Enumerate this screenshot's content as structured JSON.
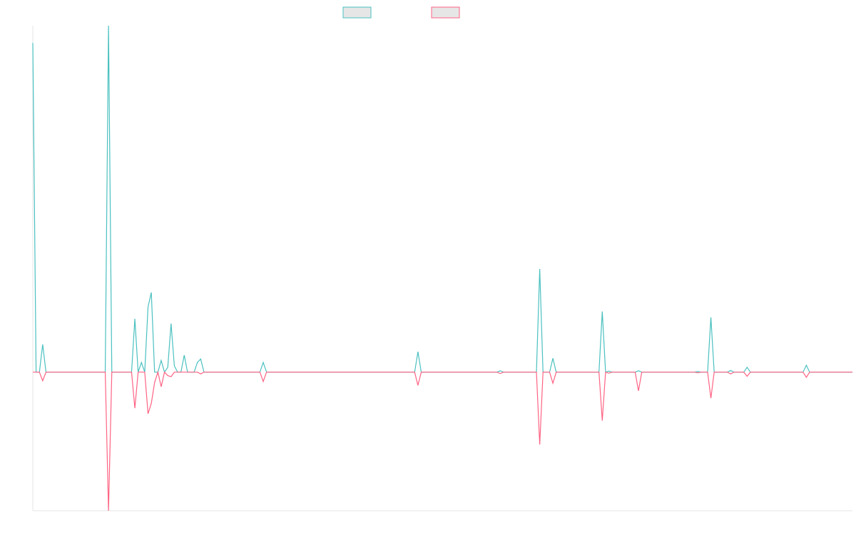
{
  "chart_data": {
    "type": "line",
    "series": [
      {
        "color": "#4bc0c0",
        "values": [
          95,
          0,
          0,
          8,
          0,
          0,
          0,
          0,
          0,
          0,
          0,
          0,
          0,
          0,
          0,
          0,
          0,
          0,
          0,
          0,
          0,
          0,
          0,
          100,
          0,
          0,
          0,
          0,
          0,
          0,
          0,
          15.4,
          0,
          2.8,
          0,
          18.8,
          23,
          0,
          0,
          3.4,
          0,
          1.4,
          14,
          1.8,
          0,
          0,
          4.9,
          0,
          0,
          0,
          2.8,
          3.8,
          0,
          0,
          0,
          0,
          0,
          0,
          0,
          0,
          0,
          0,
          0,
          0,
          0,
          0,
          0,
          0,
          0,
          0,
          2.8,
          0,
          0,
          0,
          0,
          0,
          0,
          0,
          0,
          0,
          0,
          0,
          0,
          0,
          0,
          0,
          0,
          0,
          0,
          0,
          0,
          0,
          0,
          0,
          0,
          0,
          0,
          0,
          0,
          0,
          0,
          0,
          0,
          0,
          0,
          0,
          0,
          0,
          0,
          0,
          0,
          0,
          0,
          0,
          0,
          0,
          0,
          5.9,
          0,
          0,
          0,
          0,
          0,
          0,
          0,
          0,
          0,
          0,
          0,
          0,
          0,
          0,
          0,
          0,
          0,
          0,
          0,
          0,
          0,
          0,
          0,
          0,
          0.4,
          0,
          0,
          0,
          0,
          0,
          0,
          0,
          0,
          0,
          0,
          0,
          29.8,
          0,
          0,
          0,
          4,
          0,
          0,
          0,
          0,
          0,
          0,
          0,
          0,
          0,
          0,
          0,
          0,
          0,
          0,
          17.5,
          0,
          0.3,
          0,
          0,
          0,
          0,
          0,
          0,
          0,
          0,
          0.4,
          0,
          0,
          0,
          0,
          0,
          0,
          0,
          0,
          0,
          0,
          0,
          0,
          0,
          0,
          0,
          0,
          0,
          0.2,
          0,
          0,
          0,
          15.8,
          0,
          0,
          0,
          0,
          0,
          0.5,
          0,
          0,
          0,
          0,
          1.4,
          0,
          0,
          0,
          0,
          0,
          0,
          0,
          0,
          0,
          0,
          0,
          0,
          0,
          0,
          0,
          0,
          0,
          2,
          0,
          0,
          0,
          0,
          0,
          0,
          0,
          0,
          0,
          0,
          0,
          0,
          0,
          0
        ]
      },
      {
        "color": "#ff6384",
        "values": [
          0,
          0,
          0,
          -2.5,
          0,
          0,
          0,
          0,
          0,
          0,
          0,
          0,
          0,
          0,
          0,
          0,
          0,
          0,
          0,
          0,
          0,
          0,
          0,
          -40,
          0,
          0,
          0,
          0,
          0,
          0,
          0,
          -10.4,
          0,
          0,
          0,
          -12,
          -9,
          -3,
          0,
          -4.2,
          0,
          -1,
          -1.3,
          0,
          0,
          0,
          0,
          0,
          0,
          0,
          0,
          -0.5,
          0,
          0,
          0,
          0,
          0,
          0,
          0,
          0,
          0,
          0,
          0,
          0,
          0,
          0,
          0,
          0,
          0,
          0,
          -2.7,
          0,
          0,
          0,
          0,
          0,
          0,
          0,
          0,
          0,
          0,
          0,
          0,
          0,
          0,
          0,
          0,
          0,
          0,
          0,
          0,
          0,
          0,
          0,
          0,
          0,
          0,
          0,
          0,
          0,
          0,
          0,
          0,
          0,
          0,
          0,
          0,
          0,
          0,
          0,
          0,
          0,
          0,
          0,
          0,
          0,
          0,
          -3.8,
          0,
          0,
          0,
          0,
          0,
          0,
          0,
          0,
          0,
          0,
          0,
          0,
          0,
          0,
          0,
          0,
          0,
          0,
          0,
          0,
          0,
          0,
          0,
          0,
          -0.4,
          0,
          0,
          0,
          0,
          0,
          0,
          0,
          0,
          0,
          0,
          0,
          -20.9,
          0,
          0,
          0,
          -3.2,
          0,
          0,
          0,
          0,
          0,
          0,
          0,
          0,
          0,
          0,
          0,
          0,
          0,
          0,
          -14,
          0,
          -0.3,
          0,
          0,
          0,
          0,
          0,
          0,
          0,
          0,
          -5.4,
          0,
          0,
          0,
          0,
          0,
          0,
          0,
          0,
          0,
          0,
          0,
          0,
          0,
          0,
          0,
          0,
          0,
          -0.2,
          0,
          0,
          0,
          -7.5,
          0,
          0,
          0,
          0,
          0,
          -0.5,
          0,
          0,
          0,
          0,
          -1.2,
          0,
          0,
          0,
          0,
          0,
          0,
          0,
          0,
          0,
          0,
          0,
          0,
          0,
          0,
          0,
          0,
          0,
          -1.5,
          0,
          0,
          0,
          0,
          0,
          0,
          0,
          0,
          0,
          0,
          0,
          0,
          0,
          0
        ]
      }
    ],
    "ylim": [
      -40,
      100
    ]
  }
}
